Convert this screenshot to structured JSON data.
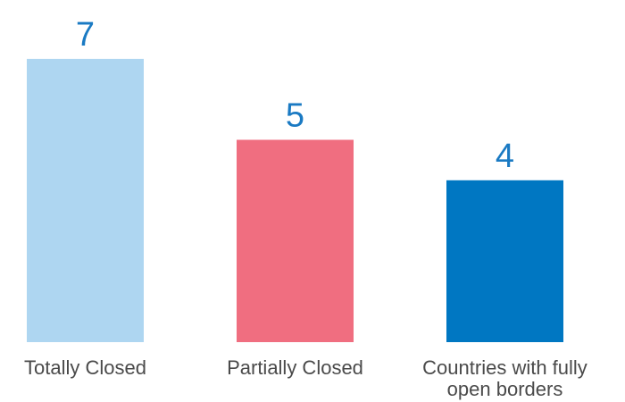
{
  "chart_data": {
    "type": "bar",
    "categories": [
      "Totally Closed",
      "Partially Closed",
      "Countries with fully open borders"
    ],
    "category_lines": [
      [
        "Totally Closed"
      ],
      [
        "Partially Closed"
      ],
      [
        "Countries with fully",
        "open borders"
      ]
    ],
    "values": [
      7,
      5,
      4
    ],
    "colors": [
      "#aed6f1",
      "#f06e80",
      "#0077c2"
    ],
    "value_label_color": "#1a7ac3",
    "ylim": [
      0,
      7
    ],
    "grid": false,
    "title": "",
    "xlabel": "",
    "ylabel": ""
  }
}
